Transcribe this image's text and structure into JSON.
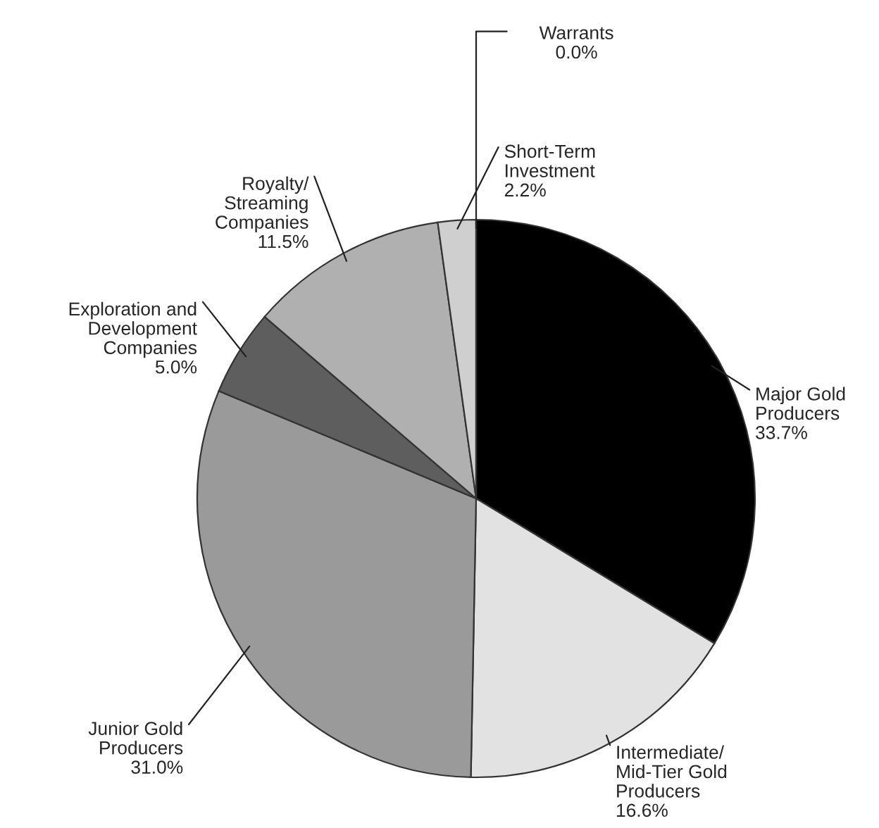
{
  "chart_data": {
    "type": "pie",
    "categories": [
      "Major Gold\nProducers",
      "Intermediate/\nMid-Tier Gold\nProducers",
      "Junior Gold\nProducers",
      "Exploration and\nDevelopment\nCompanies",
      "Royalty/\nStreaming\nCompanies",
      "Short-Term\nInvestment",
      "Warrants"
    ],
    "values": [
      33.7,
      16.6,
      31.0,
      5.0,
      11.5,
      2.2,
      0.0
    ],
    "value_labels": [
      "33.7%",
      "16.6%",
      "31.0%",
      "5.0%",
      "11.5%",
      "2.2%",
      "0.0%"
    ],
    "colors": [
      "#000000",
      "#e2e2e2",
      "#9a9a9a",
      "#5e5e5e",
      "#b0b0b0",
      "#cfcfcf",
      "#ffffff"
    ]
  }
}
